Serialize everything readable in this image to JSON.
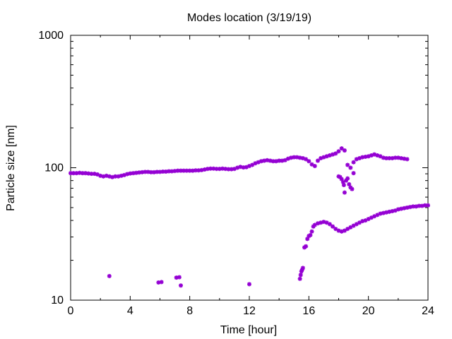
{
  "chart_data": {
    "type": "scatter",
    "title": "Modes location (3/19/19)",
    "xlabel": "Time [hour]",
    "ylabel": "Particle size [nm]",
    "xlim": [
      0,
      24
    ],
    "ylim": [
      10,
      1000
    ],
    "yscale": "log",
    "grid": false,
    "legend": "none",
    "x_ticks": [
      0,
      4,
      8,
      12,
      16,
      20,
      24
    ],
    "y_ticks": [
      10,
      100,
      1000
    ],
    "x_tick_labels": [
      "0",
      "4",
      "8",
      "12",
      "16",
      "20",
      "24"
    ],
    "y_tick_labels": [
      "10",
      "100",
      "1000"
    ],
    "marker_color": "#9400d3",
    "series": [
      {
        "points": [
          [
            0.0,
            91
          ],
          [
            0.2,
            91
          ],
          [
            0.4,
            91
          ],
          [
            0.6,
            91.5
          ],
          [
            0.8,
            91
          ],
          [
            1.0,
            91
          ],
          [
            1.2,
            90.5
          ],
          [
            1.4,
            90
          ],
          [
            1.6,
            90
          ],
          [
            1.8,
            89
          ],
          [
            2.0,
            87
          ],
          [
            2.2,
            86
          ],
          [
            2.4,
            87
          ],
          [
            2.6,
            86
          ],
          [
            2.8,
            85
          ],
          [
            3.0,
            86
          ],
          [
            3.2,
            86
          ],
          [
            3.4,
            87
          ],
          [
            3.6,
            88
          ],
          [
            3.8,
            89.5
          ],
          [
            4.0,
            90.5
          ],
          [
            4.2,
            91
          ],
          [
            4.4,
            91.5
          ],
          [
            4.6,
            92
          ],
          [
            4.8,
            92.5
          ],
          [
            5.0,
            93
          ],
          [
            5.2,
            93
          ],
          [
            5.4,
            92.5
          ],
          [
            5.6,
            92.5
          ],
          [
            5.8,
            93
          ],
          [
            6.0,
            93
          ],
          [
            6.2,
            93.5
          ],
          [
            6.4,
            93.5
          ],
          [
            6.6,
            94
          ],
          [
            6.8,
            94
          ],
          [
            7.0,
            94.5
          ],
          [
            7.2,
            95
          ],
          [
            7.4,
            95
          ],
          [
            7.6,
            95
          ],
          [
            7.8,
            95
          ],
          [
            8.0,
            95
          ],
          [
            8.2,
            95
          ],
          [
            8.4,
            95.5
          ],
          [
            8.6,
            95.5
          ],
          [
            8.8,
            96
          ],
          [
            9.0,
            97
          ],
          [
            9.2,
            98
          ],
          [
            9.4,
            98.5
          ],
          [
            9.6,
            98.5
          ],
          [
            9.8,
            98
          ],
          [
            10.0,
            98
          ],
          [
            10.2,
            98.5
          ],
          [
            10.4,
            98
          ],
          [
            10.6,
            97.5
          ],
          [
            10.8,
            97.5
          ],
          [
            11.0,
            98
          ],
          [
            11.2,
            100
          ],
          [
            11.4,
            101.5
          ],
          [
            11.6,
            100.5
          ],
          [
            11.8,
            101
          ],
          [
            12.0,
            103
          ],
          [
            12.2,
            105
          ],
          [
            12.4,
            108
          ],
          [
            12.6,
            110
          ],
          [
            12.8,
            112
          ],
          [
            13.0,
            113
          ],
          [
            13.2,
            114
          ],
          [
            13.4,
            113
          ],
          [
            13.6,
            112
          ],
          [
            13.8,
            112
          ],
          [
            14.0,
            113
          ],
          [
            14.2,
            113
          ],
          [
            14.4,
            114
          ],
          [
            14.6,
            117
          ],
          [
            14.8,
            119
          ],
          [
            15.0,
            120
          ],
          [
            15.2,
            120
          ],
          [
            15.4,
            119
          ],
          [
            15.6,
            118
          ],
          [
            15.8,
            116
          ],
          [
            16.0,
            112
          ],
          [
            16.2,
            106
          ],
          [
            16.4,
            103
          ],
          [
            16.6,
            113
          ],
          [
            16.8,
            118
          ],
          [
            17.0,
            120
          ],
          [
            17.2,
            122
          ],
          [
            17.4,
            124
          ],
          [
            17.6,
            126
          ],
          [
            17.8,
            128
          ],
          [
            18.0,
            133
          ],
          [
            18.2,
            140
          ],
          [
            18.4,
            135
          ],
          [
            18.6,
            105
          ],
          [
            18.8,
            100
          ],
          [
            19.0,
            110
          ],
          [
            19.2,
            116
          ],
          [
            19.4,
            118
          ],
          [
            19.6,
            120
          ],
          [
            19.8,
            121
          ],
          [
            20.0,
            122
          ],
          [
            20.2,
            124
          ],
          [
            20.4,
            126
          ],
          [
            20.6,
            124
          ],
          [
            20.8,
            122
          ],
          [
            21.0,
            119
          ],
          [
            21.2,
            118
          ],
          [
            21.4,
            118
          ],
          [
            21.6,
            118
          ],
          [
            21.8,
            119
          ],
          [
            22.0,
            119
          ],
          [
            22.2,
            118
          ],
          [
            22.4,
            117
          ],
          [
            22.6,
            116
          ],
          [
            18.0,
            86
          ],
          [
            18.1,
            85
          ],
          [
            18.2,
            82
          ],
          [
            18.3,
            78
          ],
          [
            18.35,
            74
          ],
          [
            18.4,
            65
          ],
          [
            18.5,
            80
          ],
          [
            18.6,
            83
          ],
          [
            18.7,
            75
          ],
          [
            18.8,
            71
          ],
          [
            18.9,
            69
          ],
          [
            19.0,
            91
          ],
          [
            15.4,
            14.5
          ],
          [
            15.45,
            15.5
          ],
          [
            15.5,
            16.5
          ],
          [
            15.55,
            17
          ],
          [
            15.6,
            17.5
          ],
          [
            15.7,
            25
          ],
          [
            15.8,
            25.5
          ],
          [
            15.9,
            29
          ],
          [
            16.0,
            30.5
          ],
          [
            16.1,
            31
          ],
          [
            16.2,
            33
          ],
          [
            16.3,
            36
          ],
          [
            16.4,
            37
          ],
          [
            16.6,
            38
          ],
          [
            16.8,
            38.5
          ],
          [
            17.0,
            39
          ],
          [
            17.2,
            38.5
          ],
          [
            17.4,
            37.5
          ],
          [
            17.6,
            36
          ],
          [
            17.8,
            34.5
          ],
          [
            18.0,
            33.5
          ],
          [
            18.2,
            33
          ],
          [
            18.4,
            33.5
          ],
          [
            18.6,
            34.5
          ],
          [
            18.8,
            35.5
          ],
          [
            19.0,
            36.5
          ],
          [
            19.2,
            37.5
          ],
          [
            19.4,
            38.5
          ],
          [
            19.6,
            39.5
          ],
          [
            19.8,
            40
          ],
          [
            20.0,
            41
          ],
          [
            20.2,
            42
          ],
          [
            20.4,
            43
          ],
          [
            20.6,
            44
          ],
          [
            20.8,
            45
          ],
          [
            21.0,
            45.5
          ],
          [
            21.2,
            46
          ],
          [
            21.4,
            46.5
          ],
          [
            21.6,
            47
          ],
          [
            21.8,
            47.5
          ],
          [
            22.0,
            48.5
          ],
          [
            22.2,
            49
          ],
          [
            22.4,
            49.5
          ],
          [
            22.6,
            50
          ],
          [
            22.8,
            50.5
          ],
          [
            23.0,
            51
          ],
          [
            23.2,
            51
          ],
          [
            23.4,
            51.5
          ],
          [
            23.6,
            51.5
          ],
          [
            23.8,
            52
          ],
          [
            24.0,
            52
          ],
          [
            2.6,
            15.2
          ],
          [
            5.9,
            13.6
          ],
          [
            6.1,
            13.7
          ],
          [
            7.1,
            14.8
          ],
          [
            7.3,
            14.9
          ],
          [
            7.4,
            12.9
          ],
          [
            12.0,
            13.2
          ]
        ]
      }
    ]
  }
}
